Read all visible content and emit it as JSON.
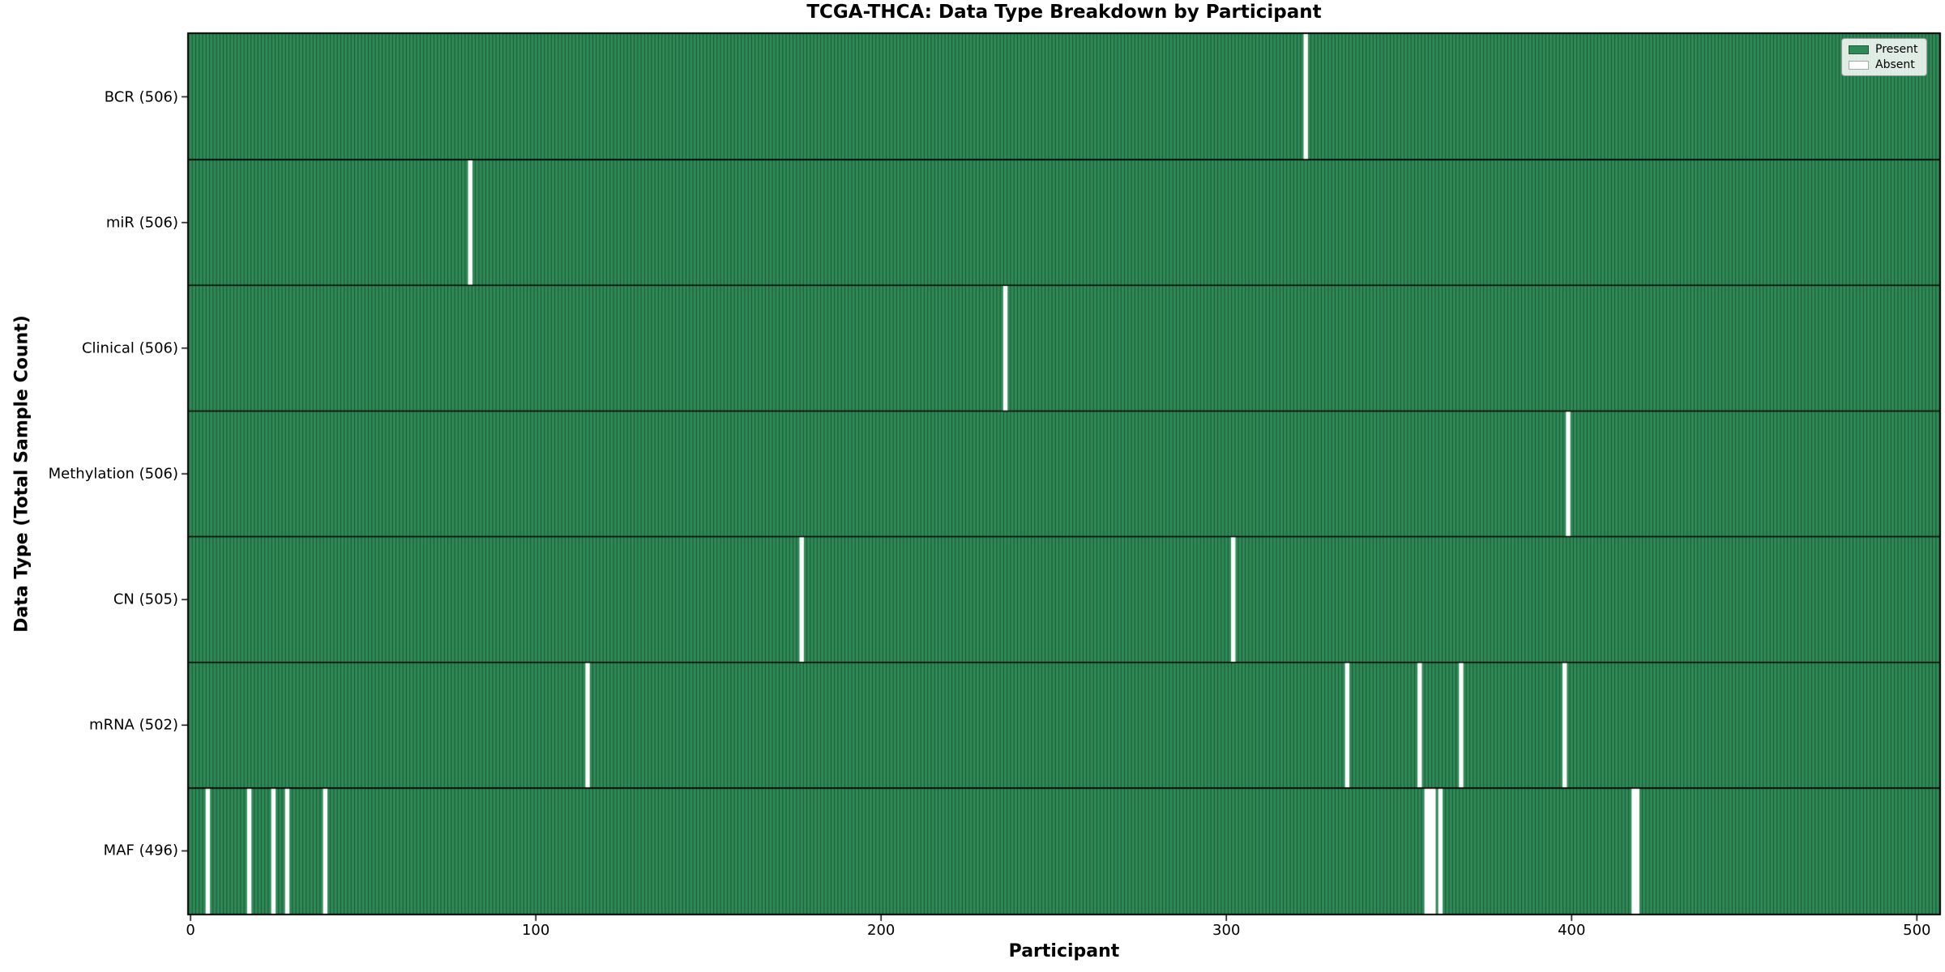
{
  "chart_data": {
    "type": "heatmap",
    "title": "TCGA-THCA: Data Type Breakdown by Participant",
    "xlabel": "Participant",
    "ylabel": "Data Type (Total Sample Count)",
    "x_ticks": [
      0,
      100,
      200,
      300,
      400,
      500
    ],
    "n_participants": 507,
    "xlim": [
      -0.5,
      506.5
    ],
    "grid": false,
    "legend": {
      "position": "upper right",
      "entries": [
        {
          "label": "Present",
          "color": "#2e8b57"
        },
        {
          "label": "Absent",
          "color": "#ffffff"
        }
      ]
    },
    "colors": {
      "present": "#2e8b57",
      "absent": "#ffffff",
      "edge": "rgba(0,0,0,0.5)",
      "frame": "#000000",
      "background": "#ffffff",
      "text": "#000000"
    },
    "rows": [
      {
        "name": "BCR",
        "label": "BCR (506)",
        "total": 506,
        "absent_participants": [
          323
        ]
      },
      {
        "name": "miR",
        "label": "miR (506)",
        "total": 506,
        "absent_participants": [
          81
        ]
      },
      {
        "name": "Clinical",
        "label": "Clinical (506)",
        "total": 506,
        "absent_participants": [
          236
        ]
      },
      {
        "name": "Methylation",
        "label": "Methylation (506)",
        "total": 506,
        "absent_participants": [
          399
        ]
      },
      {
        "name": "CN",
        "label": "CN (505)",
        "total": 505,
        "absent_participants": [
          177,
          302
        ]
      },
      {
        "name": "mRNA",
        "label": "mRNA (502)",
        "total": 502,
        "absent_participants": [
          115,
          335,
          356,
          368,
          398
        ]
      },
      {
        "name": "MAF",
        "label": "MAF (496)",
        "total": 496,
        "absent_participants": [
          5,
          17,
          24,
          28,
          39,
          358,
          359,
          360,
          362,
          418,
          419
        ]
      }
    ]
  }
}
